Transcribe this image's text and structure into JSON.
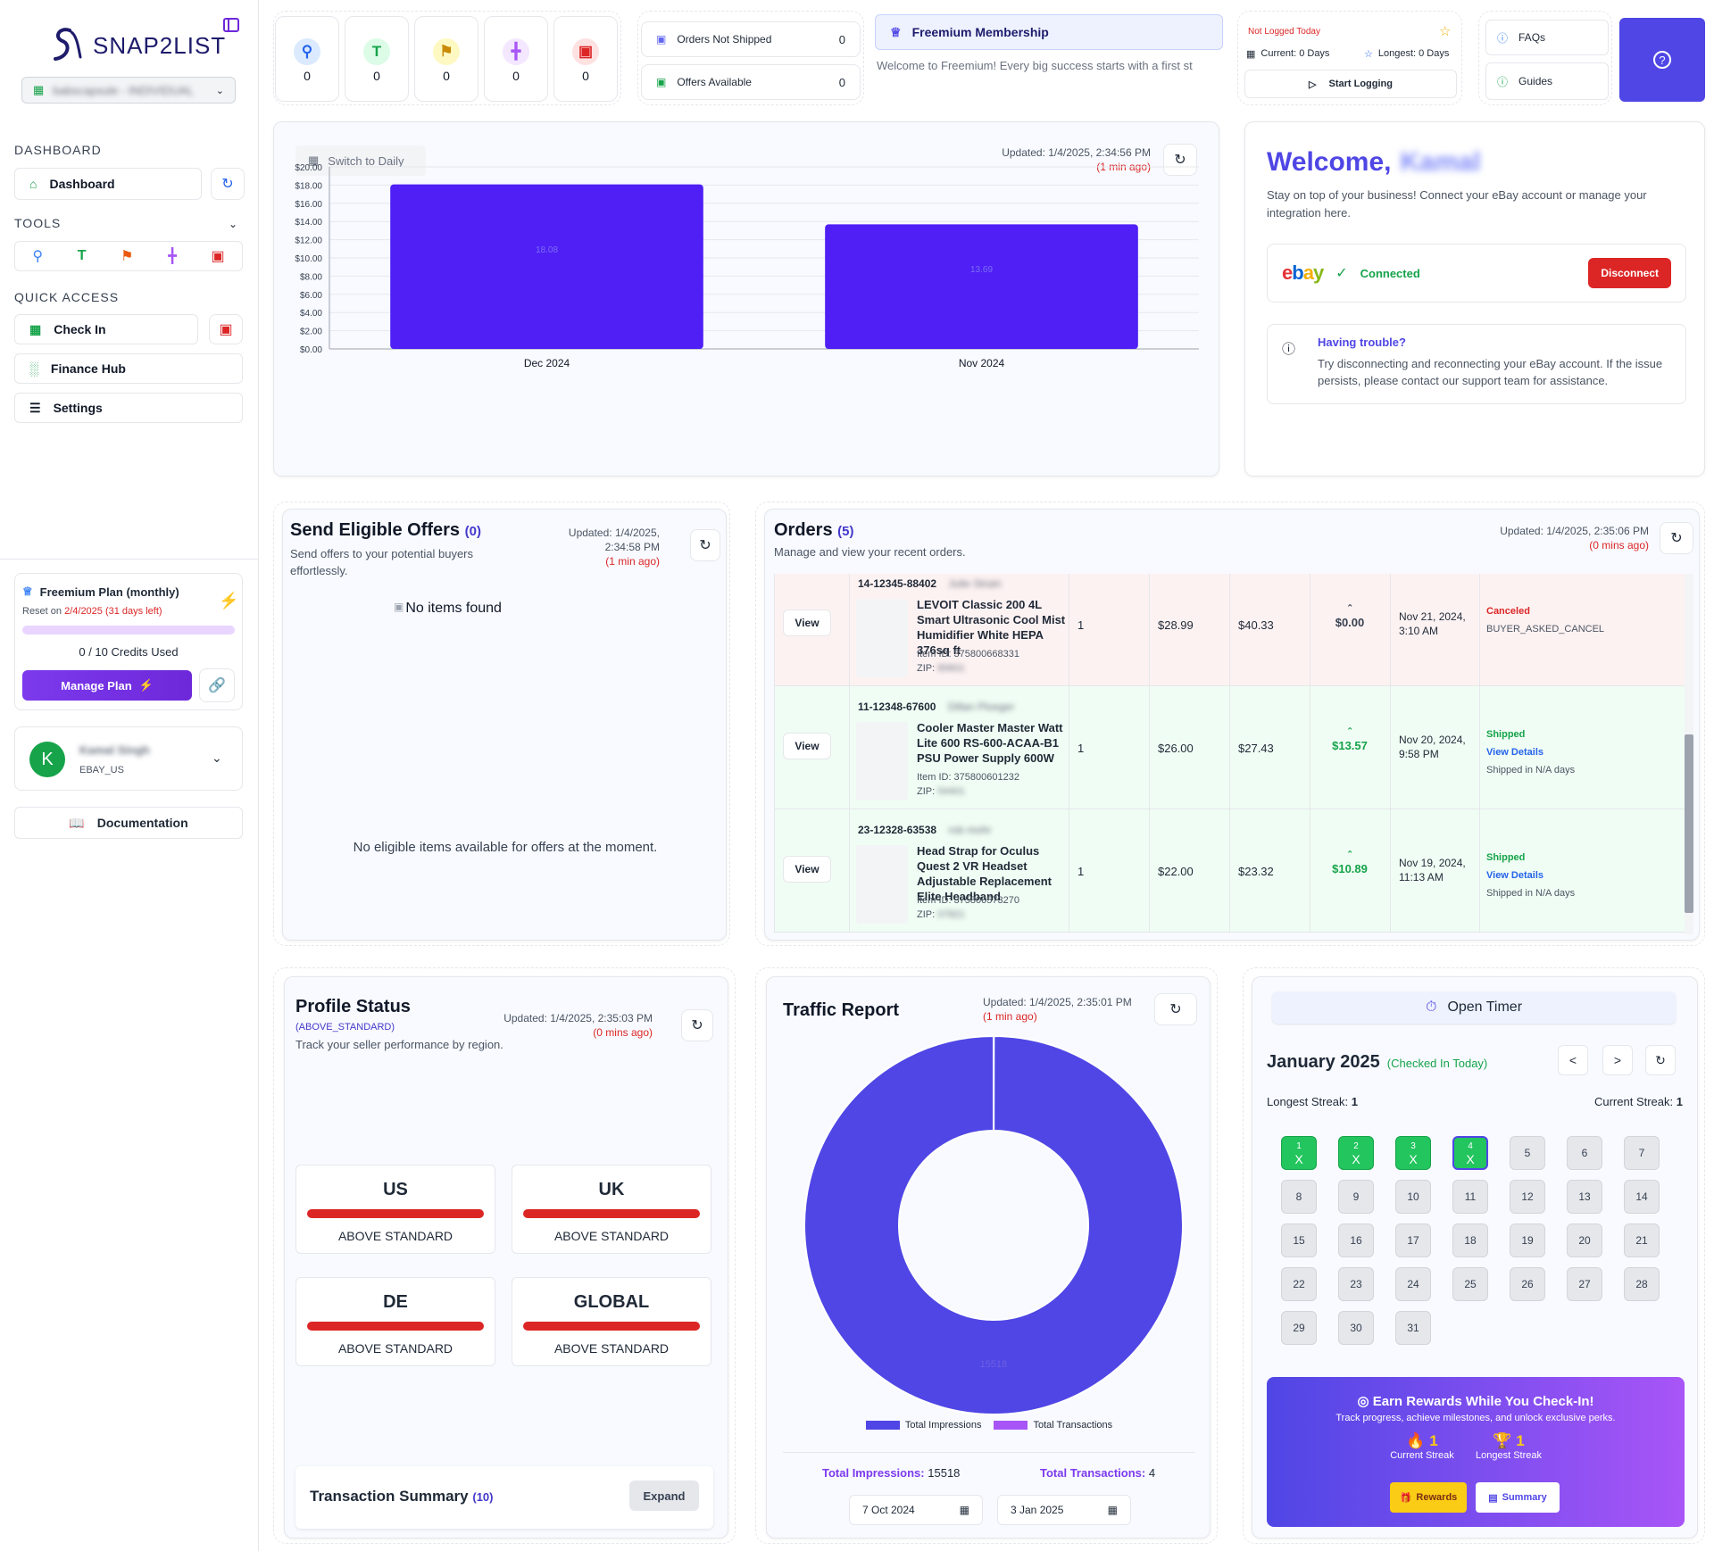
{
  "sidebar": {
    "brand": "SNAP2LIST",
    "store": "babscapsule - INDIVIDUAL",
    "dashboard_heading": "DASHBOARD",
    "dashboard_label": "Dashboard",
    "tools_heading": "TOOLS",
    "quick_heading": "QUICK ACCESS",
    "quick_items": [
      "Check In",
      "Finance Hub",
      "Settings"
    ],
    "plan": {
      "name": "Freemium Plan (monthly)",
      "reset_prefix": "Reset on ",
      "reset_date": "2/4/2025 (31 days left)",
      "credits": "0 / 10 Credits Used",
      "credits_used_fraction": 0.0,
      "manage": "Manage Plan"
    },
    "user": {
      "initial": "K",
      "name": "Kamal Singh",
      "market": "EBAY_US"
    },
    "documentation": "Documentation"
  },
  "topbar": {
    "stats": [
      "0",
      "0",
      "0",
      "0",
      "0"
    ],
    "orders_not_shipped": {
      "label": "Orders Not Shipped",
      "value": "0"
    },
    "offers_available": {
      "label": "Offers Available",
      "value": "0"
    },
    "membership": {
      "title": "Freemium Membership",
      "message": "Welcome to Freemium! Every big success starts with a first st"
    },
    "logging": {
      "status": "Not Logged Today",
      "current": "Current: 0 Days",
      "longest": "Longest: 0 Days",
      "start": "Start Logging"
    },
    "faqs": "FAQs",
    "guides": "Guides"
  },
  "sales_chart": {
    "toggle": "Switch to Daily",
    "updated": "Updated: 1/4/2025, 2:34:56 PM",
    "ago": "(1 min ago)"
  },
  "chart_data": {
    "type": "bar",
    "categories": [
      "Dec 2024",
      "Nov 2024"
    ],
    "values": [
      18.08,
      13.69
    ],
    "value_labels": [
      "18.08",
      "13.69"
    ],
    "ylim": [
      0,
      20
    ],
    "yticks": [
      "$20.00",
      "$18.00",
      "$16.00",
      "$14.00",
      "$12.00",
      "$10.00",
      "$8.00",
      "$6.00",
      "$4.00",
      "$2.00",
      "$0.00"
    ],
    "color": "#4f1ff5",
    "grid": true
  },
  "welcome": {
    "title": "Welcome,",
    "name": "Kamal",
    "text": "Stay on top of your business! Connect your eBay account or manage your integration here.",
    "ebay": "ebay",
    "connected": "Connected",
    "disconnect": "Disconnect",
    "trouble_title": "Having trouble?",
    "trouble_text": "Try disconnecting and reconnecting your eBay account. If the issue persists, please contact our support team for assistance."
  },
  "offers": {
    "title": "Send Eligible Offers",
    "count": "(0)",
    "subtitle": "Send offers to your potential buyers effortlessly.",
    "updated": "Updated: 1/4/2025, 2:34:58 PM",
    "ago": "(1 min ago)",
    "no_items_alt": "No items found",
    "empty": "No eligible items available for offers at the moment."
  },
  "orders": {
    "title": "Orders",
    "count": "(5)",
    "subtitle": "Manage and view your recent orders.",
    "updated": "Updated: 1/4/2025, 2:35:06 PM",
    "ago": "(0 mins ago)",
    "view": "View",
    "rows": [
      {
        "order_id": "14-12345-88402",
        "buyer": "Julie Strain",
        "title": "LEVOIT Classic 200 4L Smart Ultrasonic Cool Mist Humidifier White HEPA 376sq ft",
        "item_id": "Item ID: 375800668331",
        "zip_label": "ZIP:",
        "zip": "80601",
        "qty": "1",
        "price": "$28.99",
        "total": "$40.33",
        "profit": "$0.00",
        "date": "Nov 21, 2024, 3:10 AM",
        "status": "Canceled",
        "status_detail": "BUYER_ASKED_CANCEL",
        "link": "",
        "bg": "#fdf2f2",
        "profit_color": "#374151",
        "status_color": "#dc2626"
      },
      {
        "order_id": "11-12348-67600",
        "buyer": "Dillan Ploeger",
        "title": "Cooler Master Master Watt Lite 600 RS-600-ACAA-B1 PSU Power Supply 600W",
        "item_id": "Item ID: 375800601232",
        "zip_label": "ZIP:",
        "zip": "54401",
        "qty": "1",
        "price": "$26.00",
        "total": "$27.43",
        "profit": "$13.57",
        "date": "Nov 20, 2024, 9:58 PM",
        "status": "Shipped",
        "status_detail": "Shipped in N/A days",
        "link": "View Details",
        "bg": "#f0fdf4",
        "profit_color": "#16a34a",
        "status_color": "#16a34a"
      },
      {
        "order_id": "23-12328-63538",
        "buyer": "rob mohr",
        "title": "Head Strap for Oculus Quest 2 VR Headset Adjustable Replacement Elite Headband",
        "item_id": "Item ID: 375800573270",
        "zip_label": "ZIP:",
        "zip": "07821",
        "qty": "1",
        "price": "$22.00",
        "total": "$23.32",
        "profit": "$10.89",
        "date": "Nov 19, 2024, 11:13 AM",
        "status": "Shipped",
        "status_detail": "Shipped in N/A days",
        "link": "View Details",
        "bg": "#f0fdf4",
        "profit_color": "#16a34a",
        "status_color": "#16a34a"
      }
    ]
  },
  "profile": {
    "title": "Profile Status",
    "status": "(ABOVE_STANDARD)",
    "subtitle": "Track your seller performance by region.",
    "updated": "Updated: 1/4/2025, 2:35:03 PM",
    "ago": "(0 mins ago)",
    "regions": [
      {
        "name": "US",
        "status": "ABOVE STANDARD"
      },
      {
        "name": "UK",
        "status": "ABOVE STANDARD"
      },
      {
        "name": "DE",
        "status": "ABOVE STANDARD"
      },
      {
        "name": "GLOBAL",
        "status": "ABOVE STANDARD"
      }
    ],
    "tx_title": "Transaction Summary",
    "tx_count": "(10)",
    "expand": "Expand"
  },
  "traffic": {
    "title": "Traffic Report",
    "updated": "Updated: 1/4/2025, 2:35:01 PM",
    "ago": "(1 min ago)",
    "impressions": 15518,
    "transactions": 4,
    "impressions_label": "15518",
    "transactions_label": "4",
    "legend_impressions": "Total Impressions",
    "legend_transactions": "Total Transactions",
    "total_impressions_label": "Total Impressions:",
    "total_impressions": "15518",
    "total_transactions_label": "Total Transactions:",
    "total_transactions": "4",
    "date_from": "7 Oct 2024",
    "date_to": "3 Jan 2025",
    "color_impressions": "#4f46e5",
    "color_transactions": "#a855f7"
  },
  "checkin": {
    "open_timer": "Open Timer",
    "month": "January 2025",
    "checked": "(Checked In Today)",
    "prev": "<",
    "next": ">",
    "longest_label": "Longest Streak:",
    "longest": "1",
    "current_label": "Current Streak:",
    "current": "1",
    "mark": "X",
    "checked_days": [
      1,
      2,
      3,
      4
    ],
    "today": 4,
    "days_in_month": 31,
    "rewards_title": "Earn Rewards While You Check-In!",
    "rewards_sub": "Track progress, achieve milestones, and unlock exclusive perks.",
    "current_streak_label": "Current Streak",
    "longest_streak_label": "Longest Streak",
    "streak_current": "1",
    "streak_longest": "1",
    "rewards_btn": "Rewards",
    "summary_btn": "Summary"
  }
}
